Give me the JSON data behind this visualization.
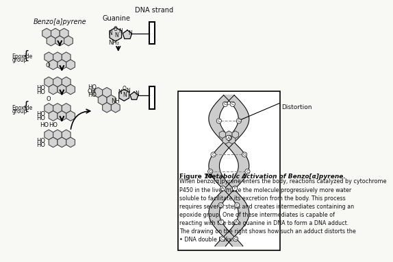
{
  "bg_color": "#f8f8f5",
  "text_color": "#111111",
  "mol_fill": "#d4d4d4",
  "mol_edge": "#444444",
  "strand_fill": "#cccccc",
  "strand_edge": "#555555",
  "helix_fill": "#cccccc",
  "helix_edge": "#333333",
  "fig_number": "Figure 10",
  "fig_bold": "   Metabolic Activation of Benzo[a]pyrene.",
  "fig_body": "  When\nbenzo[a]pyrene enters the body, reactions catalyzed by cytochrome\nP450 in the liver make the molecule progressively more water\nsoluble to facilitate its excretion from the body. This process\nrequires several steps and creates intermediates containing an\nepoxide group. One of these intermediates is capable of\nreacting with the base guanine in DNA to form a DNA adduct.\nThe drawing on the right shows how such an adduct distorts the\nDNA double helix.",
  "bap_label": "Benzo[a]pyrene",
  "guanine_label": "Guanine",
  "dna_label": "DNA strand",
  "distortion_label": "Distortion",
  "epoxide_label": [
    "Epoxide",
    "group"
  ],
  "bp_pairs": [
    [
      "G",
      "C"
    ],
    [
      "C",
      "G"
    ],
    [
      "T",
      "A"
    ],
    [
      "G",
      "C"
    ],
    [
      "C",
      "G"
    ],
    [
      "T",
      "A"
    ],
    [
      "G",
      "C"
    ],
    [
      "T",
      "A"
    ],
    [
      "G",
      "C"
    ]
  ]
}
